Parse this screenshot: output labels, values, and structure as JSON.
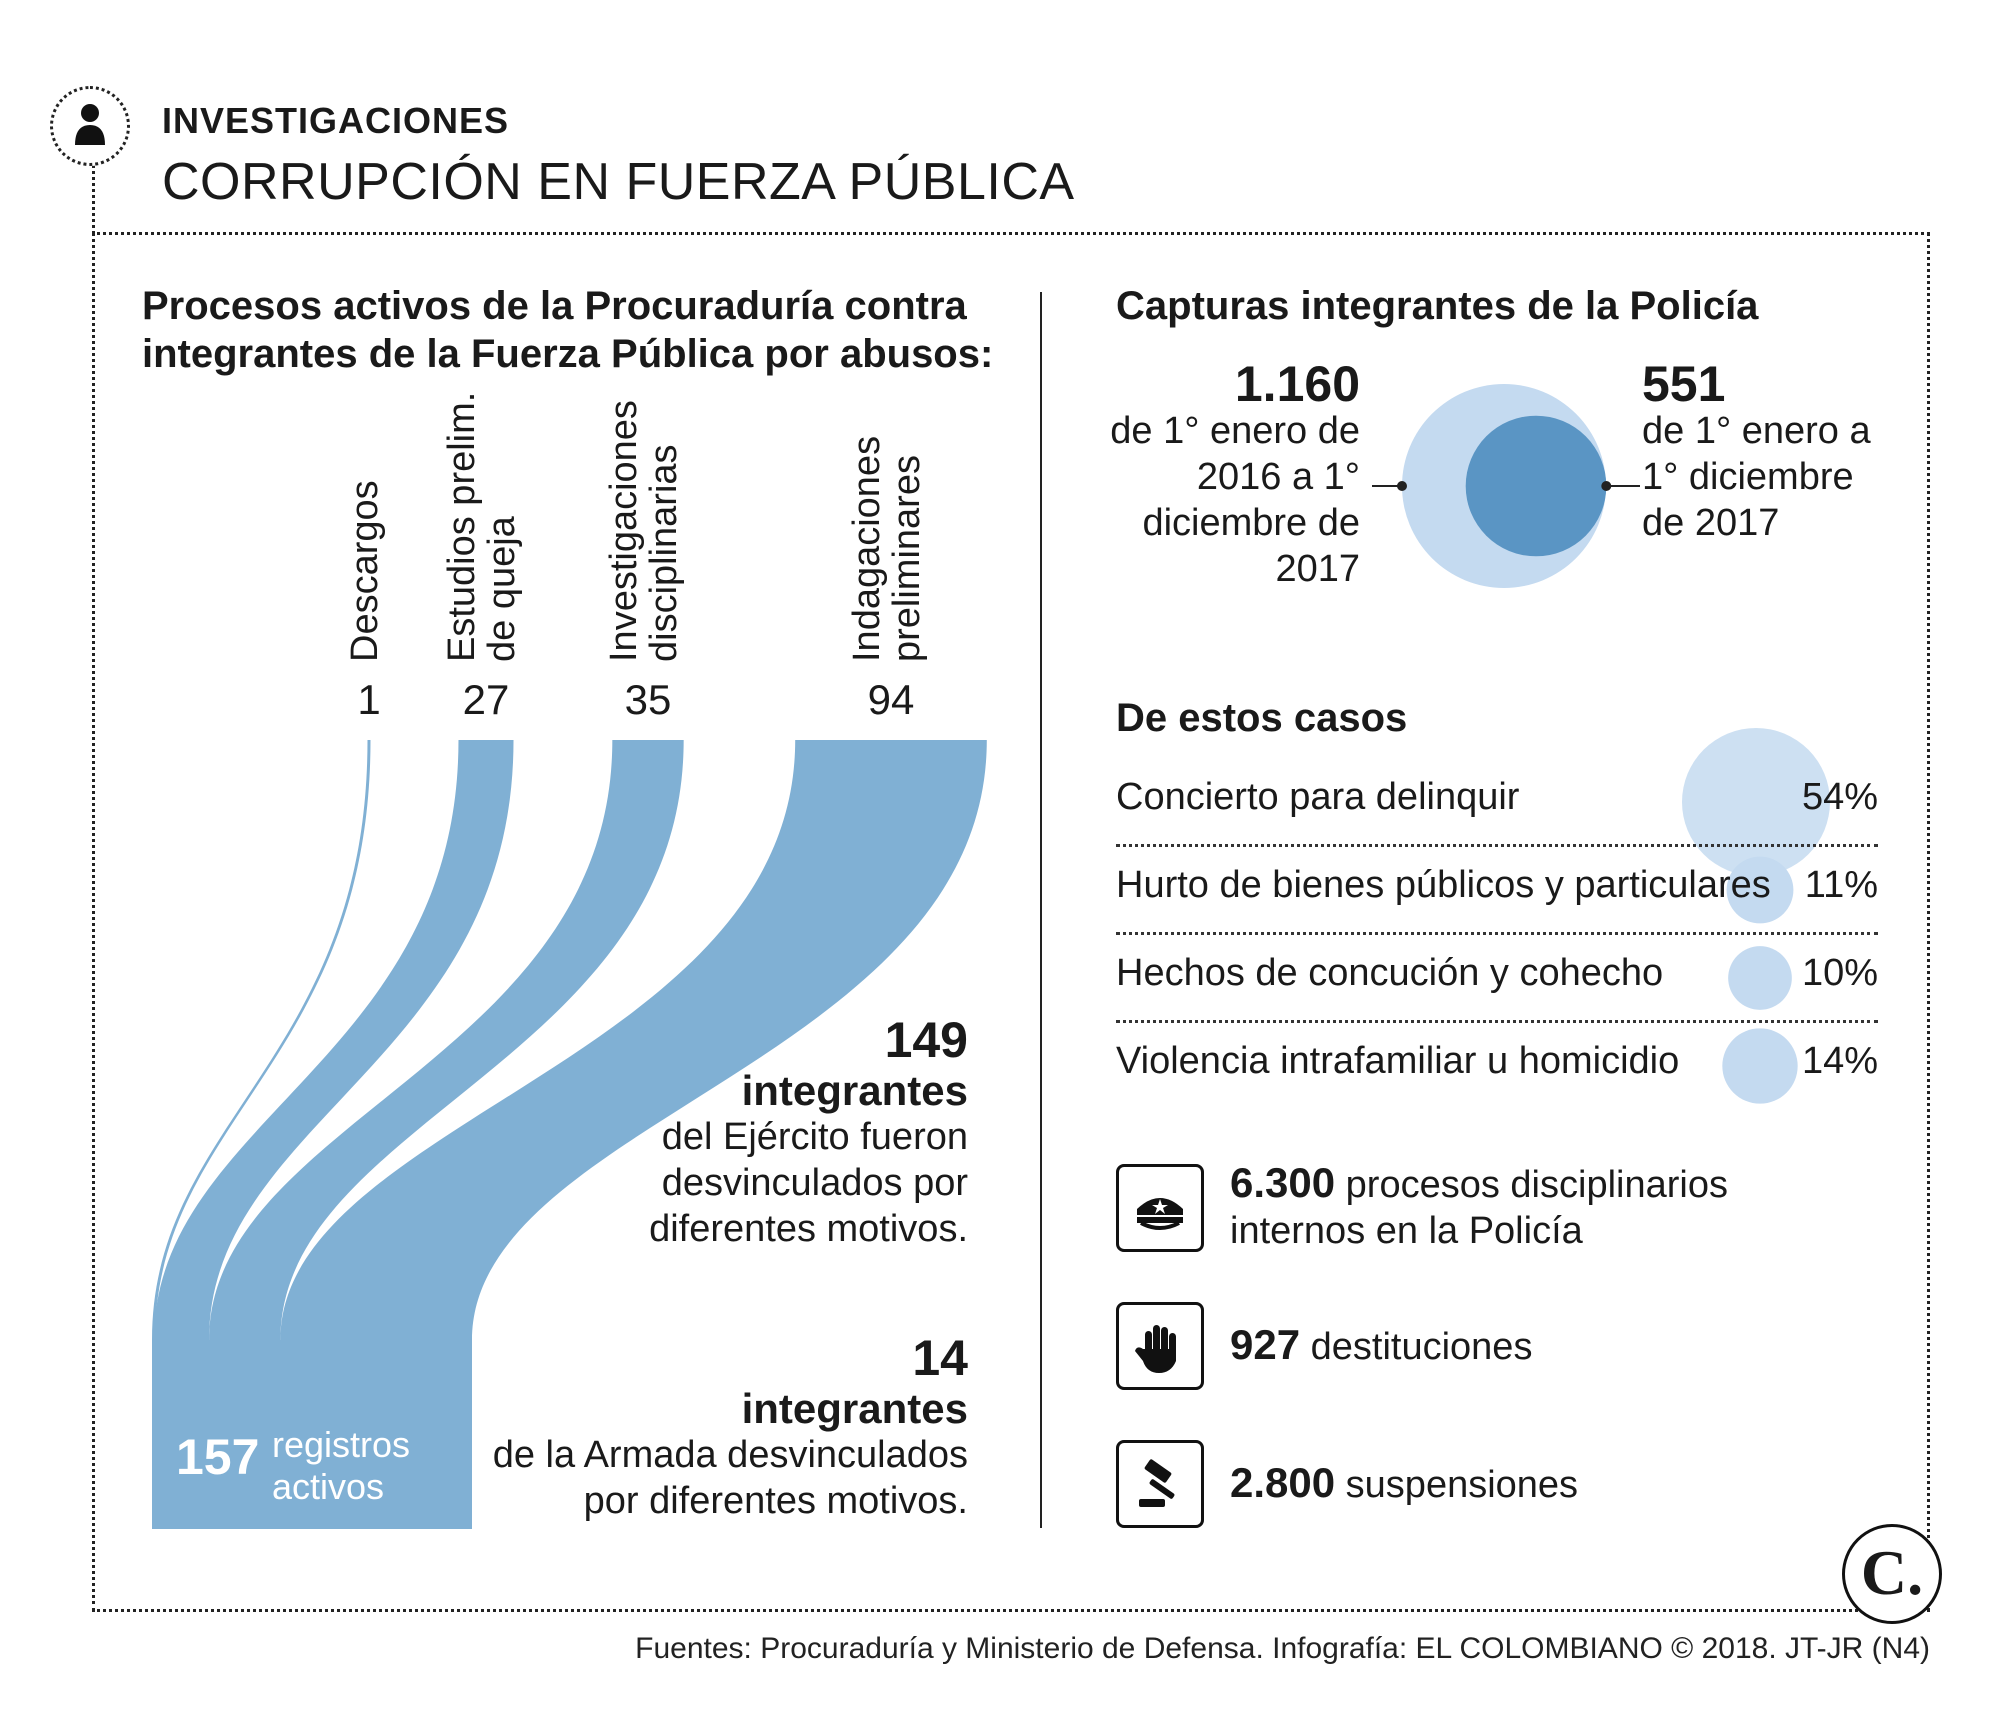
{
  "header": {
    "kicker": "INVESTIGACIONES",
    "title": "CORRUPCIÓN EN FUERZA PÚBLICA",
    "icon": "person-icon"
  },
  "left": {
    "heading_line1": "Procesos activos de la Procuraduría contra",
    "heading_line2": "integrantes de la Fuerza Pública por abusos:",
    "total_number": "157",
    "total_label_1": "registros",
    "total_label_2": "activos",
    "army": {
      "number": "149",
      "word": "integrantes",
      "l1": "del Ejército fueron",
      "l2": "desvinculados por",
      "l3": "diferentes motivos."
    },
    "navy": {
      "number": "14",
      "word": "integrantes",
      "l1": "de la Armada desvinculados",
      "l2": "por diferentes motivos."
    }
  },
  "chart_data": [
    {
      "type": "sankey",
      "title": "Procesos activos de la Procuraduría contra integrantes de la Fuerza Pública por abusos:",
      "categories": [
        "Descargos",
        "Estudios prelim. de queja",
        "Investigaciones disciplinarias",
        "Indagaciones preliminares"
      ],
      "category_lines": [
        [
          "Descargos"
        ],
        [
          "Estudios prelim.",
          "de queja"
        ],
        [
          "Investigaciones",
          "disciplinarias"
        ],
        [
          "Indagaciones",
          "preliminares"
        ]
      ],
      "values": [
        1,
        27,
        35,
        94
      ],
      "value_labels": [
        "1",
        "27",
        "35",
        "94"
      ],
      "total": 157,
      "color": "#80b0d4"
    },
    {
      "type": "bubble",
      "title": "Capturas integrantes de la Policía",
      "series": [
        {
          "name": "de 1° enero de 2016 a 1° diciembre de 2017",
          "value": 1160,
          "value_label": "1.160",
          "color": "#c4daf0"
        },
        {
          "name": "de 1° enero a 1° diciembre de 2017",
          "value": 551,
          "value_label": "551",
          "color": "#5a95c4"
        }
      ]
    },
    {
      "type": "bubble",
      "title": "De estos casos",
      "categories": [
        "Concierto para delinquir",
        "Hurto de bienes públicos y particulares",
        "Hechos de concución y cohecho",
        "Violencia intrafamiliar u homicidio"
      ],
      "values": [
        54,
        11,
        10,
        14
      ],
      "value_labels": [
        "54%",
        "11%",
        "10%",
        "14%"
      ],
      "color": "#c4daf0"
    }
  ],
  "captures": {
    "heading": "Capturas integrantes de la Policía",
    "left_number": "1.160",
    "left_l1": "de 1° enero de",
    "left_l2": "2016 a 1°",
    "left_l3": "diciembre de",
    "left_l4": "2017",
    "right_number": "551",
    "right_l1": "de 1° enero a",
    "right_l2": "1° diciembre",
    "right_l3": "de 2017"
  },
  "cases": {
    "heading": "De estos casos"
  },
  "facts": [
    {
      "icon": "police-cap-icon",
      "number": "6.300",
      "text1": "procesos disciplinarios",
      "text2": "internos en la Policía"
    },
    {
      "icon": "hand-stop-icon",
      "number": "927",
      "text1": "destituciones",
      "text2": ""
    },
    {
      "icon": "gavel-icon",
      "number": "2.800",
      "text1": "suspensiones",
      "text2": ""
    }
  ],
  "footer": {
    "logo": "C.",
    "source": "Fuentes: Procuraduría y Ministerio de Defensa. Infografía: EL COLOMBIANO © 2018. JT-JR (N4)"
  }
}
